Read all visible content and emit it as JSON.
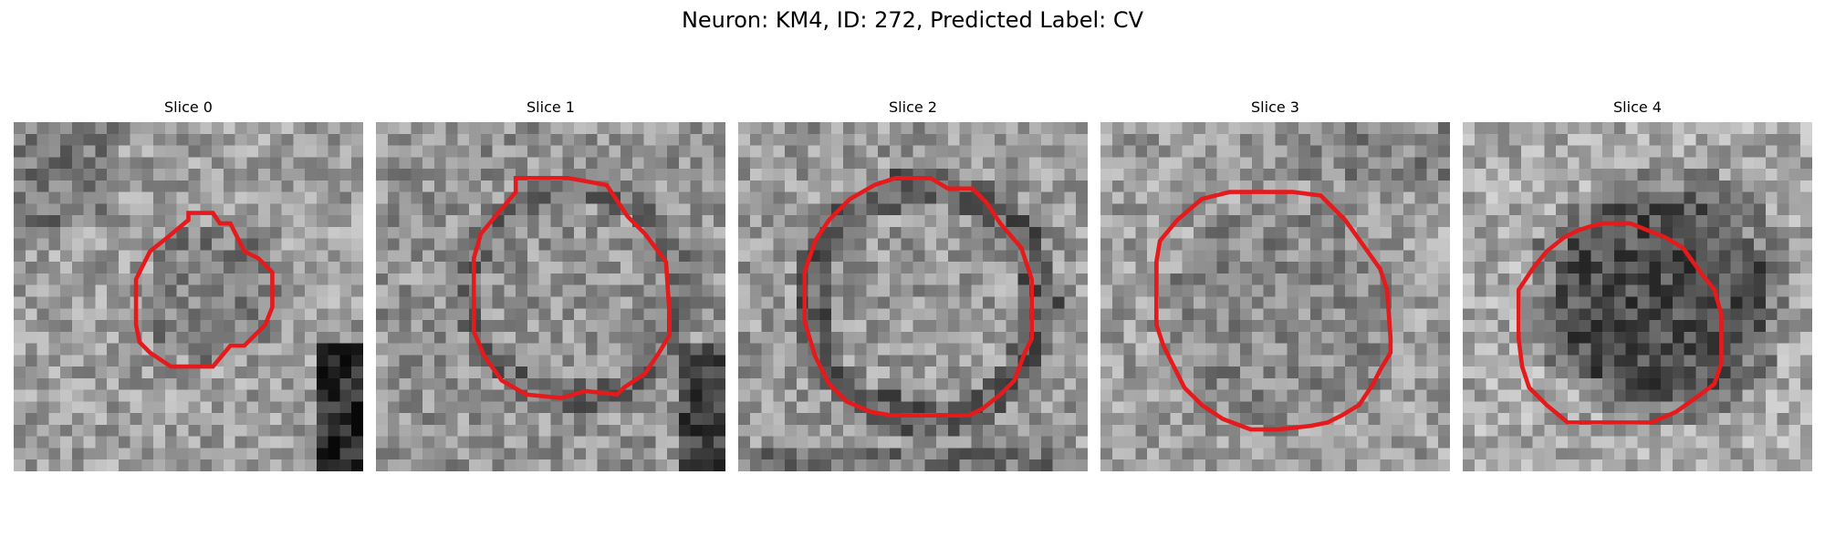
{
  "title": "Neuron: KM4, ID: 272, Predicted Label: CV",
  "colors": {
    "contour": "#e41a1c",
    "background": "#ffffff"
  },
  "panels": [
    {
      "label": "Slice 0",
      "contour": [
        [
          0.5,
          0.26
        ],
        [
          0.57,
          0.26
        ],
        [
          0.59,
          0.29
        ],
        [
          0.62,
          0.29
        ],
        [
          0.66,
          0.37
        ],
        [
          0.7,
          0.39
        ],
        [
          0.74,
          0.43
        ],
        [
          0.74,
          0.53
        ],
        [
          0.72,
          0.58
        ],
        [
          0.66,
          0.64
        ],
        [
          0.62,
          0.64
        ],
        [
          0.57,
          0.7
        ],
        [
          0.45,
          0.7
        ],
        [
          0.39,
          0.66
        ],
        [
          0.36,
          0.63
        ],
        [
          0.35,
          0.58
        ],
        [
          0.35,
          0.45
        ],
        [
          0.39,
          0.37
        ],
        [
          0.44,
          0.33
        ],
        [
          0.5,
          0.28
        ]
      ]
    },
    {
      "label": "Slice 1",
      "contour": [
        [
          0.4,
          0.16
        ],
        [
          0.55,
          0.16
        ],
        [
          0.66,
          0.18
        ],
        [
          0.72,
          0.27
        ],
        [
          0.77,
          0.32
        ],
        [
          0.83,
          0.4
        ],
        [
          0.84,
          0.55
        ],
        [
          0.84,
          0.61
        ],
        [
          0.81,
          0.66
        ],
        [
          0.77,
          0.72
        ],
        [
          0.71,
          0.76
        ],
        [
          0.69,
          0.78
        ],
        [
          0.6,
          0.77
        ],
        [
          0.53,
          0.79
        ],
        [
          0.43,
          0.78
        ],
        [
          0.36,
          0.74
        ],
        [
          0.31,
          0.67
        ],
        [
          0.28,
          0.6
        ],
        [
          0.28,
          0.53
        ],
        [
          0.28,
          0.39
        ],
        [
          0.3,
          0.32
        ],
        [
          0.35,
          0.26
        ],
        [
          0.4,
          0.2
        ]
      ]
    },
    {
      "label": "Slice 2",
      "contour": [
        [
          0.39,
          0.18
        ],
        [
          0.45,
          0.16
        ],
        [
          0.55,
          0.16
        ],
        [
          0.6,
          0.19
        ],
        [
          0.67,
          0.19
        ],
        [
          0.71,
          0.23
        ],
        [
          0.75,
          0.29
        ],
        [
          0.81,
          0.36
        ],
        [
          0.84,
          0.45
        ],
        [
          0.84,
          0.55
        ],
        [
          0.84,
          0.62
        ],
        [
          0.82,
          0.66
        ],
        [
          0.79,
          0.74
        ],
        [
          0.75,
          0.78
        ],
        [
          0.7,
          0.82
        ],
        [
          0.66,
          0.84
        ],
        [
          0.57,
          0.84
        ],
        [
          0.44,
          0.84
        ],
        [
          0.38,
          0.83
        ],
        [
          0.31,
          0.8
        ],
        [
          0.26,
          0.75
        ],
        [
          0.22,
          0.67
        ],
        [
          0.19,
          0.57
        ],
        [
          0.19,
          0.43
        ],
        [
          0.22,
          0.34
        ],
        [
          0.26,
          0.28
        ],
        [
          0.32,
          0.22
        ]
      ]
    },
    {
      "label": "Slice 3",
      "contour": [
        [
          0.42,
          0.2
        ],
        [
          0.55,
          0.2
        ],
        [
          0.63,
          0.21
        ],
        [
          0.7,
          0.28
        ],
        [
          0.75,
          0.35
        ],
        [
          0.8,
          0.42
        ],
        [
          0.82,
          0.48
        ],
        [
          0.83,
          0.62
        ],
        [
          0.83,
          0.66
        ],
        [
          0.8,
          0.71
        ],
        [
          0.78,
          0.75
        ],
        [
          0.74,
          0.81
        ],
        [
          0.69,
          0.84
        ],
        [
          0.65,
          0.86
        ],
        [
          0.6,
          0.87
        ],
        [
          0.51,
          0.88
        ],
        [
          0.43,
          0.88
        ],
        [
          0.35,
          0.85
        ],
        [
          0.29,
          0.81
        ],
        [
          0.24,
          0.76
        ],
        [
          0.21,
          0.7
        ],
        [
          0.18,
          0.64
        ],
        [
          0.16,
          0.58
        ],
        [
          0.16,
          0.4
        ],
        [
          0.17,
          0.34
        ],
        [
          0.22,
          0.28
        ],
        [
          0.29,
          0.22
        ],
        [
          0.37,
          0.2
        ]
      ]
    },
    {
      "label": "Slice 4",
      "contour": [
        [
          0.36,
          0.3
        ],
        [
          0.4,
          0.29
        ],
        [
          0.48,
          0.29
        ],
        [
          0.53,
          0.31
        ],
        [
          0.58,
          0.33
        ],
        [
          0.63,
          0.36
        ],
        [
          0.68,
          0.43
        ],
        [
          0.72,
          0.48
        ],
        [
          0.74,
          0.55
        ],
        [
          0.74,
          0.69
        ],
        [
          0.72,
          0.75
        ],
        [
          0.68,
          0.78
        ],
        [
          0.61,
          0.83
        ],
        [
          0.54,
          0.86
        ],
        [
          0.4,
          0.86
        ],
        [
          0.3,
          0.86
        ],
        [
          0.24,
          0.81
        ],
        [
          0.19,
          0.76
        ],
        [
          0.17,
          0.7
        ],
        [
          0.16,
          0.62
        ],
        [
          0.16,
          0.48
        ],
        [
          0.2,
          0.42
        ],
        [
          0.24,
          0.37
        ],
        [
          0.29,
          0.33
        ],
        [
          0.33,
          0.31
        ]
      ]
    }
  ]
}
